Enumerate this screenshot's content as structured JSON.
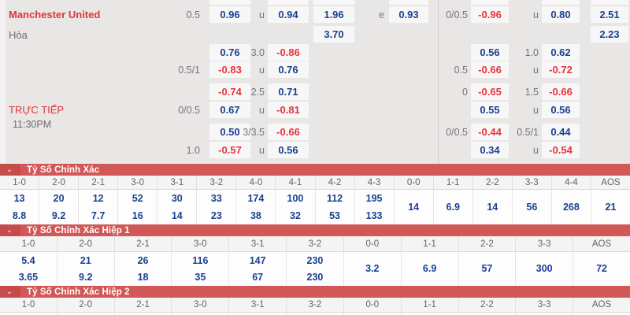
{
  "colors": {
    "background": "#e9e6e6",
    "odds_box_bg": "#f8f7f7",
    "odds_blue": "#1a4090",
    "odds_red": "#e8343a",
    "label_grey": "#767474",
    "team_red": "#e03438",
    "section_bar_red": "#d25757",
    "chevron_box_red": "#c64b4b",
    "table_value_blue": "#1a4090"
  },
  "odds_panel": {
    "team_name": "Manchester United",
    "draw_label": "Hòa",
    "live_label": "TRỰC TIẾP",
    "time": "11:30PM",
    "cells": [
      {
        "row": 0,
        "col": "box1",
        "text": "",
        "color": "blue"
      },
      {
        "row": 0,
        "col": "box2",
        "text": "",
        "color": "blue"
      },
      {
        "row": 0,
        "col": "box3",
        "text": "",
        "color": "blue"
      },
      {
        "row": 0,
        "col": "box4",
        "text": "",
        "color": "blue"
      },
      {
        "row": 0,
        "col": "box5",
        "text": "",
        "color": "blue"
      },
      {
        "row": 0,
        "col": "box6",
        "text": "",
        "color": "blue"
      },
      {
        "row": 0,
        "col": "box7",
        "text": "",
        "color": "blue"
      },
      {
        "row": 1,
        "col": "hcp1",
        "text": "0.5",
        "color": "grey"
      },
      {
        "row": 1,
        "col": "box1",
        "text": "0.96",
        "color": "blue"
      },
      {
        "row": 1,
        "col": "mid1",
        "text": "u",
        "color": "grey"
      },
      {
        "row": 1,
        "col": "box2",
        "text": "0.94",
        "color": "blue"
      },
      {
        "row": 1,
        "col": "box3",
        "text": "1.96",
        "color": "blue"
      },
      {
        "row": 1,
        "col": "mid2",
        "text": "e",
        "color": "grey"
      },
      {
        "row": 1,
        "col": "box4",
        "text": "0.93",
        "color": "blue"
      },
      {
        "row": 1,
        "col": "hcp3",
        "text": "0/0.5",
        "color": "grey"
      },
      {
        "row": 1,
        "col": "box5",
        "text": "-0.96",
        "color": "red"
      },
      {
        "row": 1,
        "col": "mid3",
        "text": "u",
        "color": "grey"
      },
      {
        "row": 1,
        "col": "box6",
        "text": "0.80",
        "color": "blue"
      },
      {
        "row": 1,
        "col": "box7",
        "text": "2.51",
        "color": "blue"
      },
      {
        "row": 2,
        "col": "box3",
        "text": "3.70",
        "color": "blue"
      },
      {
        "row": 2,
        "col": "box7",
        "text": "2.23",
        "color": "blue"
      },
      {
        "row": 3,
        "col": "box1",
        "text": "0.76",
        "color": "blue"
      },
      {
        "row": 3,
        "col": "mid1",
        "text": "3.0",
        "color": "grey"
      },
      {
        "row": 3,
        "col": "box2",
        "text": "-0.86",
        "color": "red"
      },
      {
        "row": 3,
        "col": "box5",
        "text": "0.56",
        "color": "blue"
      },
      {
        "row": 3,
        "col": "mid3",
        "text": "1.0",
        "color": "grey"
      },
      {
        "row": 3,
        "col": "box6",
        "text": "0.62",
        "color": "blue"
      },
      {
        "row": 4,
        "col": "hcp1",
        "text": "0.5/1",
        "color": "grey"
      },
      {
        "row": 4,
        "col": "box1",
        "text": "-0.83",
        "color": "red"
      },
      {
        "row": 4,
        "col": "mid1",
        "text": "u",
        "color": "grey"
      },
      {
        "row": 4,
        "col": "box2",
        "text": "0.76",
        "color": "blue"
      },
      {
        "row": 4,
        "col": "hcp3",
        "text": "0.5",
        "color": "grey"
      },
      {
        "row": 4,
        "col": "box5",
        "text": "-0.66",
        "color": "red"
      },
      {
        "row": 4,
        "col": "mid3",
        "text": "u",
        "color": "grey"
      },
      {
        "row": 4,
        "col": "box6",
        "text": "-0.72",
        "color": "red"
      },
      {
        "row": 5,
        "col": "box1",
        "text": "-0.74",
        "color": "red"
      },
      {
        "row": 5,
        "col": "mid1",
        "text": "2.5",
        "color": "grey"
      },
      {
        "row": 5,
        "col": "box2",
        "text": "0.71",
        "color": "blue"
      },
      {
        "row": 5,
        "col": "hcp3",
        "text": "0",
        "color": "grey"
      },
      {
        "row": 5,
        "col": "box5",
        "text": "-0.65",
        "color": "red"
      },
      {
        "row": 5,
        "col": "mid3",
        "text": "1.5",
        "color": "grey"
      },
      {
        "row": 5,
        "col": "box6",
        "text": "-0.66",
        "color": "red"
      },
      {
        "row": 6,
        "col": "hcp1",
        "text": "0/0.5",
        "color": "grey"
      },
      {
        "row": 6,
        "col": "box1",
        "text": "0.67",
        "color": "blue"
      },
      {
        "row": 6,
        "col": "mid1",
        "text": "u",
        "color": "grey"
      },
      {
        "row": 6,
        "col": "box2",
        "text": "-0.81",
        "color": "red"
      },
      {
        "row": 6,
        "col": "box5",
        "text": "0.55",
        "color": "blue"
      },
      {
        "row": 6,
        "col": "mid3",
        "text": "u",
        "color": "grey"
      },
      {
        "row": 6,
        "col": "box6",
        "text": "0.56",
        "color": "blue"
      },
      {
        "row": 7,
        "col": "box1",
        "text": "0.50",
        "color": "blue"
      },
      {
        "row": 7,
        "col": "mid1",
        "text": "3/3.5",
        "color": "grey"
      },
      {
        "row": 7,
        "col": "box2",
        "text": "-0.66",
        "color": "red"
      },
      {
        "row": 7,
        "col": "hcp3",
        "text": "0/0.5",
        "color": "grey"
      },
      {
        "row": 7,
        "col": "box5",
        "text": "-0.44",
        "color": "red"
      },
      {
        "row": 7,
        "col": "mid3",
        "text": "0.5/1",
        "color": "grey"
      },
      {
        "row": 7,
        "col": "box6",
        "text": "0.44",
        "color": "blue"
      },
      {
        "row": 8,
        "col": "hcp1",
        "text": "1.0",
        "color": "grey"
      },
      {
        "row": 8,
        "col": "box1",
        "text": "-0.57",
        "color": "red"
      },
      {
        "row": 8,
        "col": "mid1",
        "text": "u",
        "color": "grey"
      },
      {
        "row": 8,
        "col": "box2",
        "text": "0.56",
        "color": "blue"
      },
      {
        "row": 8,
        "col": "box5",
        "text": "0.34",
        "color": "blue"
      },
      {
        "row": 8,
        "col": "mid3",
        "text": "u",
        "color": "grey"
      },
      {
        "row": 8,
        "col": "box6",
        "text": "-0.54",
        "color": "red"
      }
    ]
  },
  "tables": [
    {
      "title": "Tỷ Số Chính Xác",
      "columns": [
        "1-0",
        "2-0",
        "2-1",
        "3-0",
        "3-1",
        "3-2",
        "4-0",
        "4-1",
        "4-2",
        "4-3",
        "0-0",
        "1-1",
        "2-2",
        "3-3",
        "4-4",
        "AOS"
      ],
      "values": [
        [
          "13",
          "8.8"
        ],
        [
          "20",
          "9.2"
        ],
        [
          "12",
          "7.7"
        ],
        [
          "52",
          "16"
        ],
        [
          "30",
          "14"
        ],
        [
          "33",
          "23"
        ],
        [
          "174",
          "38"
        ],
        [
          "100",
          "32"
        ],
        [
          "112",
          "53"
        ],
        [
          "195",
          "133"
        ],
        [
          "14"
        ],
        [
          "6.9"
        ],
        [
          "14"
        ],
        [
          "56"
        ],
        [
          "268"
        ],
        [
          "21"
        ]
      ]
    },
    {
      "title": "Tỷ Số Chính Xác Hiệp 1",
      "columns": [
        "1-0",
        "2-0",
        "2-1",
        "3-0",
        "3-1",
        "3-2",
        "0-0",
        "1-1",
        "2-2",
        "3-3",
        "AOS"
      ],
      "values": [
        [
          "5.4",
          "3.65"
        ],
        [
          "21",
          "9.2"
        ],
        [
          "26",
          "18"
        ],
        [
          "116",
          "35"
        ],
        [
          "147",
          "67"
        ],
        [
          "230",
          "230"
        ],
        [
          "3.2"
        ],
        [
          "6.9"
        ],
        [
          "57"
        ],
        [
          "300"
        ],
        [
          "72"
        ]
      ]
    },
    {
      "title": "Tỷ Số Chính Xác Hiệp 2",
      "columns": [
        "1-0",
        "2-0",
        "2-1",
        "3-0",
        "3-1",
        "3-2",
        "0-0",
        "1-1",
        "2-2",
        "3-3",
        "AOS"
      ],
      "values": [
        [],
        [],
        [],
        [],
        [],
        [],
        [],
        [],
        [],
        [],
        []
      ]
    }
  ],
  "icons": {
    "chevron": "⌄"
  }
}
